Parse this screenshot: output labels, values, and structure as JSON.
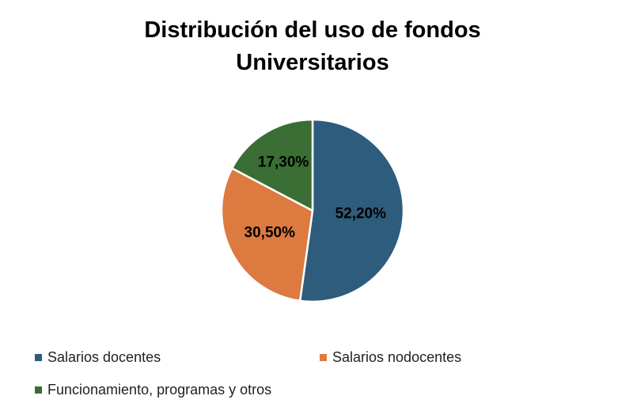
{
  "chart_data": {
    "type": "pie",
    "title_lines": [
      "Distribución del uso de fondos",
      "Universitarios"
    ],
    "categories": [
      "Salarios docentes",
      "Salarios nodocentes",
      "Funcionamiento, programas y otros"
    ],
    "values": [
      52.2,
      30.5,
      17.3
    ],
    "value_labels": [
      "52,20%",
      "30,50%",
      "17,30%"
    ],
    "colors": [
      "#2e5c7c",
      "#dc7a40",
      "#3a6e34"
    ],
    "legend_position": "bottom"
  }
}
